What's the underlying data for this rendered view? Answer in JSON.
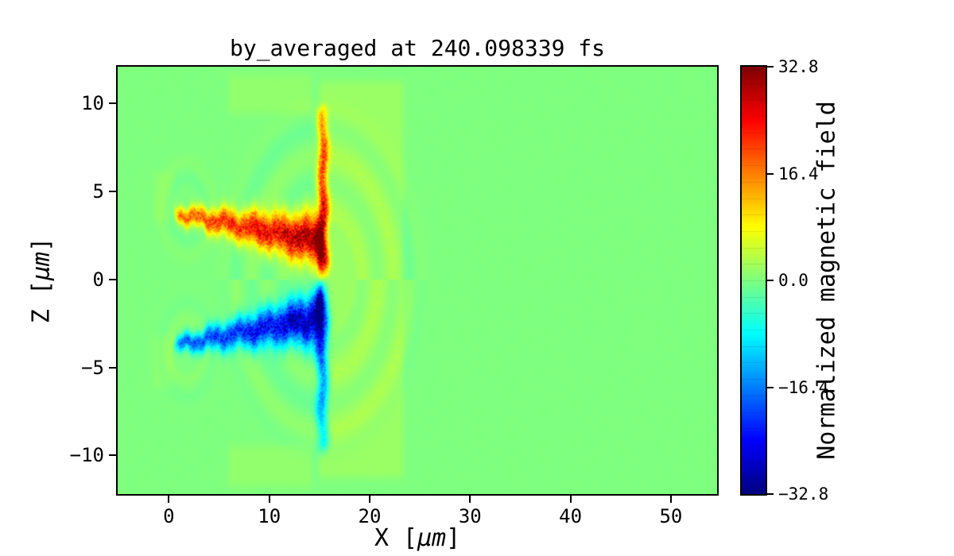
{
  "chart_data": {
    "type": "heatmap",
    "title": "by_averaged at 240.098339 fs",
    "xlabel": "X [μm]",
    "ylabel": "Z [μm]",
    "x_range": [
      -5.1,
      54.6
    ],
    "z_range": [
      -12.2,
      12.1
    ],
    "x_ticks": [
      {
        "value": 0,
        "label": "0"
      },
      {
        "value": 10,
        "label": "10"
      },
      {
        "value": 20,
        "label": "20"
      },
      {
        "value": 30,
        "label": "30"
      },
      {
        "value": 40,
        "label": "40"
      },
      {
        "value": 50,
        "label": "50"
      }
    ],
    "z_ticks": [
      {
        "value": 10,
        "label": "10"
      },
      {
        "value": 5,
        "label": "5"
      },
      {
        "value": 0,
        "label": "0"
      },
      {
        "value": -5,
        "label": "−5"
      },
      {
        "value": -10,
        "label": "−10"
      }
    ],
    "colormap": "jet",
    "vmin": -32.8,
    "vmax": 32.8,
    "grid": false,
    "colorbar": {
      "label": "Normalized magnetic field",
      "ticks": [
        {
          "value": 32.8,
          "label": "32.8"
        },
        {
          "value": 16.4,
          "label": "16.4"
        },
        {
          "value": 0,
          "label": "0.0"
        },
        {
          "value": -16.4,
          "label": "−16.4"
        },
        {
          "value": -32.8,
          "label": "−32.8"
        }
      ]
    },
    "field_features": {
      "background": 0,
      "lobes": [
        {
          "sign": 1,
          "x0": 0.7,
          "x1": 15.1,
          "zc0": 3.75,
          "zc1": 2.15,
          "hw0": 0.4,
          "hw1": 1.35,
          "amp0": 17,
          "amp1": 30
        },
        {
          "sign": -1,
          "x0": 0.7,
          "x1": 15.1,
          "zc0": -3.75,
          "zc1": -2.15,
          "hw0": 0.4,
          "hw1": 1.35,
          "amp0": 17,
          "amp1": 30
        }
      ],
      "plumes": [
        {
          "sign": 1,
          "xc": 15.35,
          "sx": 0.5,
          "z0": 0.8,
          "z1": 9.7,
          "amp0": 31,
          "amp1": 12
        },
        {
          "sign": -1,
          "xc": 15.3,
          "sx": 0.55,
          "z0": -0.8,
          "z1": -9.7,
          "amp0": 27,
          "amp1": 9
        }
      ],
      "patches": [
        {
          "x0": 14.6,
          "x1": 23.8,
          "z0": -11.7,
          "z1": 11.7,
          "amp": 1.7
        },
        {
          "x0": 5.5,
          "x1": 14.6,
          "z0": 9.0,
          "z1": 12.1,
          "amp": 1.2
        },
        {
          "x0": 5.5,
          "x1": 14.6,
          "z0": -12.2,
          "z1": -9.0,
          "amp": 1.2
        },
        {
          "x0": -2.0,
          "x1": 0.9,
          "z0": 2.8,
          "z1": 6.6,
          "amp": 0.9
        },
        {
          "x0": -2.0,
          "x1": 0.9,
          "z0": -6.6,
          "z1": -2.8,
          "amp": 0.9
        }
      ],
      "ripples": [
        {
          "xc": 15.3,
          "zc": 0,
          "r0": 2.5,
          "r1": 11.0,
          "amp": 1.1,
          "freq": 2.0,
          "signz": true
        },
        {
          "xc": 1.8,
          "zc": 4.0,
          "r0": 0.6,
          "r1": 4.2,
          "amp": 0.8,
          "freq": 2.8,
          "signz": true
        },
        {
          "xc": 1.8,
          "zc": -4.0,
          "r0": 0.6,
          "r1": 4.2,
          "amp": 0.8,
          "freq": 2.8,
          "signz": true
        }
      ],
      "speckle": 0.5
    }
  }
}
